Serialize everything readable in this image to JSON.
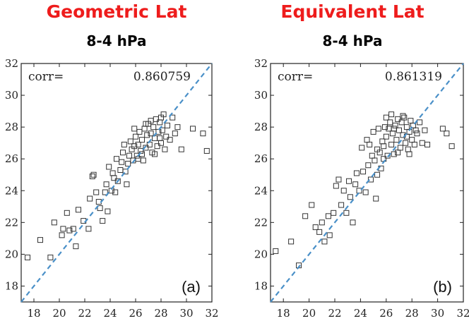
{
  "chart_data": [
    {
      "type": "scatter",
      "title": "Geometric Lat",
      "subtitle": "8-4 hPa",
      "annotation": "corr=",
      "corr_value": "0.860759",
      "panel_label": "(a)",
      "xlim": [
        17,
        32
      ],
      "ylim": [
        17,
        32
      ],
      "xticks": [
        18,
        20,
        22,
        24,
        26,
        28,
        30,
        32
      ],
      "yticks": [
        18,
        20,
        22,
        24,
        26,
        28,
        30,
        32
      ],
      "grid": false,
      "reference_line": "1:1 dashed",
      "colors": {
        "points": "#333333",
        "line": "#4a90c8"
      },
      "points": [
        [
          17.5,
          19.8
        ],
        [
          18.5,
          20.9
        ],
        [
          19.3,
          19.8
        ],
        [
          19.6,
          22.0
        ],
        [
          20.2,
          21.2
        ],
        [
          20.3,
          21.6
        ],
        [
          20.6,
          22.6
        ],
        [
          20.8,
          21.5
        ],
        [
          21.1,
          21.6
        ],
        [
          21.3,
          20.5
        ],
        [
          21.5,
          22.8
        ],
        [
          21.9,
          22.1
        ],
        [
          22.3,
          21.6
        ],
        [
          22.4,
          23.5
        ],
        [
          22.6,
          24.9
        ],
        [
          22.7,
          25.0
        ],
        [
          22.9,
          23.9
        ],
        [
          23.1,
          23.3
        ],
        [
          23.2,
          22.9
        ],
        [
          23.4,
          22.1
        ],
        [
          23.6,
          23.9
        ],
        [
          23.7,
          24.4
        ],
        [
          23.8,
          22.7
        ],
        [
          23.9,
          25.5
        ],
        [
          24.1,
          24.0
        ],
        [
          24.3,
          24.8
        ],
        [
          24.4,
          23.9
        ],
        [
          24.5,
          26.0
        ],
        [
          24.6,
          24.6
        ],
        [
          24.8,
          25.3
        ],
        [
          24.9,
          25.8
        ],
        [
          25.0,
          26.4
        ],
        [
          25.1,
          26.9
        ],
        [
          25.2,
          25.2
        ],
        [
          25.3,
          24.4
        ],
        [
          25.4,
          25.7
        ],
        [
          25.5,
          26.2
        ],
        [
          25.6,
          27.1
        ],
        [
          25.7,
          26.6
        ],
        [
          25.8,
          25.9
        ],
        [
          25.9,
          26.8
        ],
        [
          26.0,
          27.4
        ],
        [
          26.1,
          26.2
        ],
        [
          26.2,
          26.9
        ],
        [
          26.3,
          27.7
        ],
        [
          26.4,
          26.5
        ],
        [
          26.5,
          27.2
        ],
        [
          26.6,
          25.9
        ],
        [
          26.7,
          27.9
        ],
        [
          26.8,
          26.7
        ],
        [
          26.9,
          27.5
        ],
        [
          27.0,
          28.2
        ],
        [
          27.1,
          26.9
        ],
        [
          27.2,
          27.6
        ],
        [
          27.3,
          26.4
        ],
        [
          27.4,
          28.0
        ],
        [
          27.5,
          27.3
        ],
        [
          27.6,
          28.5
        ],
        [
          27.7,
          26.8
        ],
        [
          27.8,
          27.7
        ],
        [
          27.9,
          28.3
        ],
        [
          28.0,
          27.0
        ],
        [
          28.1,
          27.8
        ],
        [
          28.2,
          28.8
        ],
        [
          28.3,
          26.6
        ],
        [
          28.4,
          27.4
        ],
        [
          28.5,
          28.1
        ],
        [
          28.7,
          27.2
        ],
        [
          28.9,
          28.6
        ],
        [
          29.1,
          27.6
        ],
        [
          29.3,
          28.0
        ],
        [
          29.6,
          26.6
        ],
        [
          30.5,
          27.9
        ],
        [
          31.3,
          27.6
        ],
        [
          31.6,
          26.5
        ],
        [
          24.2,
          25.1
        ],
        [
          26.5,
          26.3
        ],
        [
          27.2,
          28.4
        ],
        [
          25.9,
          27.9
        ],
        [
          26.8,
          28.2
        ],
        [
          27.5,
          26.3
        ],
        [
          28.0,
          28.6
        ],
        [
          26.2,
          26.0
        ],
        [
          27.9,
          27.3
        ]
      ]
    },
    {
      "type": "scatter",
      "title": "Equivalent Lat",
      "subtitle": "8-4 hPa",
      "annotation": "corr=",
      "corr_value": "0.861319",
      "panel_label": "(b)",
      "xlim": [
        17,
        32
      ],
      "ylim": [
        17,
        32
      ],
      "xticks": [
        18,
        20,
        22,
        24,
        26,
        28,
        30,
        32
      ],
      "yticks": [
        18,
        20,
        22,
        24,
        26,
        28,
        30,
        32
      ],
      "grid": false,
      "reference_line": "1:1 dashed",
      "colors": {
        "points": "#333333",
        "line": "#4a90c8"
      },
      "points": [
        [
          17.4,
          20.2
        ],
        [
          18.6,
          20.8
        ],
        [
          19.2,
          19.3
        ],
        [
          19.7,
          22.4
        ],
        [
          20.2,
          23.1
        ],
        [
          20.5,
          21.7
        ],
        [
          20.8,
          21.4
        ],
        [
          21.0,
          22.0
        ],
        [
          21.2,
          20.8
        ],
        [
          21.5,
          22.4
        ],
        [
          21.6,
          21.2
        ],
        [
          21.9,
          22.6
        ],
        [
          22.1,
          24.3
        ],
        [
          22.3,
          24.7
        ],
        [
          22.5,
          23.1
        ],
        [
          22.7,
          24.0
        ],
        [
          22.9,
          22.6
        ],
        [
          23.1,
          24.6
        ],
        [
          23.2,
          23.6
        ],
        [
          23.4,
          22.0
        ],
        [
          23.6,
          24.4
        ],
        [
          23.7,
          25.1
        ],
        [
          23.9,
          24.0
        ],
        [
          24.1,
          26.7
        ],
        [
          24.2,
          25.2
        ],
        [
          24.4,
          23.9
        ],
        [
          24.5,
          27.2
        ],
        [
          24.6,
          25.6
        ],
        [
          24.8,
          24.7
        ],
        [
          24.9,
          26.2
        ],
        [
          25.0,
          27.7
        ],
        [
          25.1,
          25.9
        ],
        [
          25.2,
          23.5
        ],
        [
          25.3,
          26.6
        ],
        [
          25.4,
          27.9
        ],
        [
          25.5,
          26.4
        ],
        [
          25.6,
          25.4
        ],
        [
          25.7,
          27.1
        ],
        [
          25.8,
          26.8
        ],
        [
          25.9,
          28.0
        ],
        [
          26.0,
          27.4
        ],
        [
          26.1,
          26.2
        ],
        [
          26.2,
          27.9
        ],
        [
          26.3,
          28.3
        ],
        [
          26.4,
          26.9
        ],
        [
          26.5,
          27.6
        ],
        [
          26.6,
          26.3
        ],
        [
          26.7,
          28.1
        ],
        [
          26.8,
          27.2
        ],
        [
          26.9,
          28.5
        ],
        [
          27.0,
          27.8
        ],
        [
          27.1,
          26.7
        ],
        [
          27.2,
          28.3
        ],
        [
          27.3,
          27.5
        ],
        [
          27.4,
          28.6
        ],
        [
          27.5,
          27.0
        ],
        [
          27.6,
          28.0
        ],
        [
          27.7,
          26.6
        ],
        [
          27.8,
          27.7
        ],
        [
          27.9,
          28.4
        ],
        [
          28.0,
          27.2
        ],
        [
          28.1,
          28.1
        ],
        [
          28.2,
          26.9
        ],
        [
          28.4,
          27.6
        ],
        [
          28.6,
          28.3
        ],
        [
          28.8,
          27.0
        ],
        [
          29.0,
          27.8
        ],
        [
          29.2,
          26.9
        ],
        [
          30.4,
          27.9
        ],
        [
          30.7,
          27.6
        ],
        [
          31.1,
          26.8
        ],
        [
          26.0,
          28.6
        ],
        [
          27.3,
          28.7
        ],
        [
          25.8,
          26.0
        ],
        [
          26.9,
          26.4
        ],
        [
          27.6,
          27.4
        ],
        [
          28.3,
          27.8
        ],
        [
          24.7,
          26.9
        ],
        [
          26.4,
          28.8
        ],
        [
          27.8,
          26.3
        ],
        [
          25.3,
          25.0
        ],
        [
          26.6,
          27.9
        ]
      ]
    }
  ]
}
